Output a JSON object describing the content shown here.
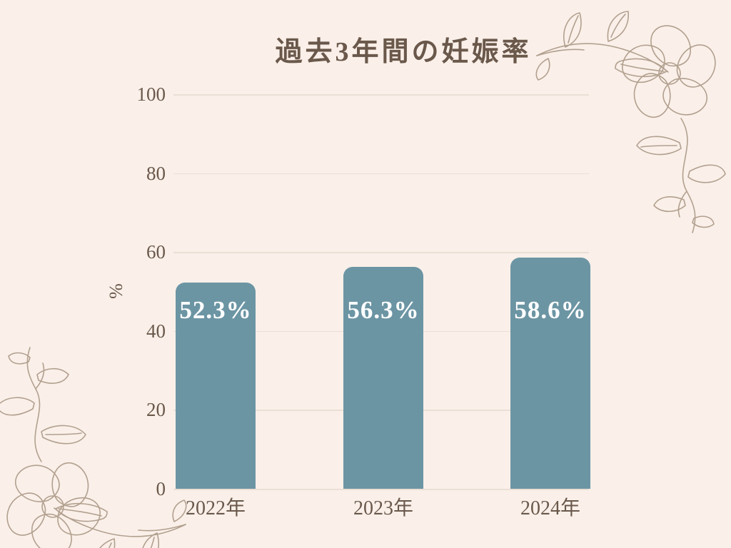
{
  "page": {
    "background_color": "#faf0e9"
  },
  "chart_data": {
    "type": "bar",
    "title": "過去3年間の妊娠率",
    "categories": [
      "2022年",
      "2023年",
      "2024年"
    ],
    "values": [
      52.3,
      56.3,
      58.6
    ],
    "value_labels": [
      "52.3%",
      "56.3%",
      "58.6%"
    ],
    "xlabel": "",
    "ylabel": "%",
    "ylim": [
      0,
      100
    ],
    "yticks": [
      0,
      20,
      40,
      60,
      80,
      100
    ],
    "grid": true,
    "legend": "none",
    "bar_color": "#6c95a4",
    "value_label_color": "#ffffff",
    "axis_text_color": "#6a584b",
    "title_color": "#6a584b",
    "gridline_color": "#ebdfd5"
  },
  "decorations": {
    "top_right": "floral-line-art",
    "bottom_left": "floral-line-art",
    "stroke_color": "#b2a08f"
  }
}
